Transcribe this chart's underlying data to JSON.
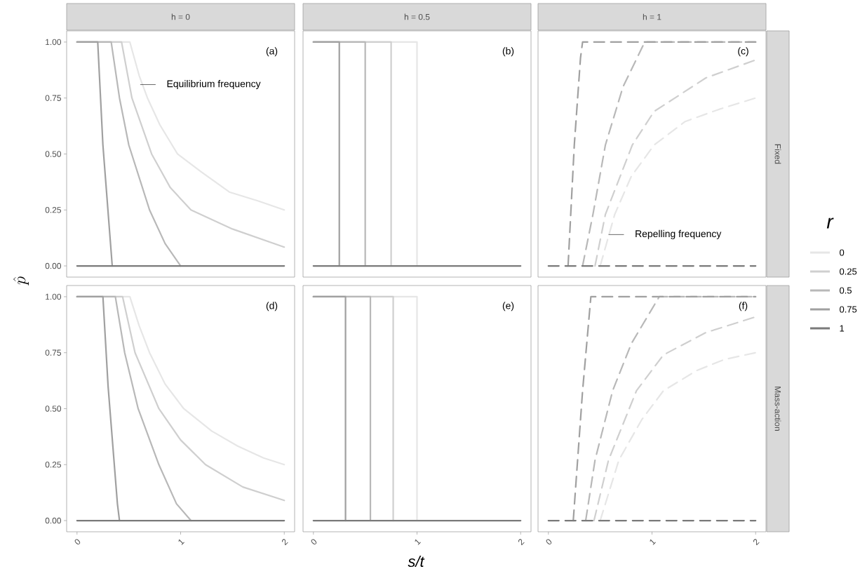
{
  "chart_data": [
    {
      "type": "line",
      "title": "h = 0",
      "ylabel": "\\hat{p}",
      "annotations": [
        "(a)",
        {
          "text": "Equilibrium frequency",
          "x": 0.61,
          "y": 0.81
        }
      ],
      "xlim": [
        -0.1,
        2.1
      ],
      "ylim": [
        -0.05,
        1.05
      ],
      "yticks": [
        {
          "value": 0,
          "label": "0.00"
        },
        {
          "value": 0.25,
          "label": "0.25"
        },
        {
          "value": 0.5,
          "label": "0.50"
        },
        {
          "value": 0.75,
          "label": "0.75"
        },
        {
          "value": 1,
          "label": "1.00"
        }
      ],
      "tick_labels": "y",
      "series": [
        {
          "color": "#e6e6e6",
          "x": [
            0,
            0.51,
            0.6,
            0.68,
            0.8,
            0.97,
            1.2,
            1.47,
            1.75,
            2
          ],
          "values": [
            1,
            1,
            0.85,
            0.75,
            0.63,
            0.5,
            0.42,
            0.33,
            0.29,
            0.25
          ]
        },
        {
          "color": "#cfcfcf",
          "x": [
            0,
            0.43,
            0.53,
            0.72,
            0.9,
            1.1,
            1.5,
            2
          ],
          "values": [
            1,
            1,
            0.75,
            0.5,
            0.35,
            0.25,
            0.165,
            0.084
          ]
        },
        {
          "color": "#b8b8b8",
          "x": [
            0,
            0.33,
            0.41,
            0.5,
            0.7,
            0.85,
            1.0
          ],
          "values": [
            1,
            1,
            0.75,
            0.54,
            0.25,
            0.1,
            0
          ]
        },
        {
          "color": "#a0a0a0",
          "x": [
            0,
            0.2,
            0.25,
            0.34
          ],
          "values": [
            1,
            1,
            0.54,
            0
          ]
        },
        {
          "color": "#7a7a7a",
          "x": [
            0,
            2
          ],
          "values": [
            0,
            0
          ]
        }
      ]
    },
    {
      "type": "line",
      "title": "h = 0.5",
      "annotations": [
        "(b)"
      ],
      "xlim": [
        -0.1,
        2.1
      ],
      "ylim": [
        -0.05,
        1.05
      ],
      "tick_labels": false,
      "series": [
        {
          "color": "#e6e6e6",
          "x": [
            0,
            1,
            1
          ],
          "values": [
            1,
            1,
            0
          ]
        },
        {
          "color": "#cfcfcf",
          "x": [
            0,
            0.75,
            0.75
          ],
          "values": [
            1,
            1,
            0
          ]
        },
        {
          "color": "#b8b8b8",
          "x": [
            0,
            0.5,
            0.5
          ],
          "values": [
            1,
            1,
            0
          ]
        },
        {
          "color": "#a0a0a0",
          "x": [
            0,
            0.25,
            0.25
          ],
          "values": [
            1,
            1,
            0
          ]
        },
        {
          "color": "#7a7a7a",
          "x": [
            0,
            2
          ],
          "values": [
            0,
            0
          ]
        }
      ]
    },
    {
      "type": "line",
      "title": "h = 1",
      "y2label": "Fixed",
      "legend": "right",
      "legend_title": "r",
      "line_style": "dashed",
      "annotations": [
        "(c)",
        {
          "text": "Repelling frequency",
          "x": 0.58,
          "y": 0.14
        }
      ],
      "xlim": [
        -0.1,
        2.1
      ],
      "ylim": [
        -0.05,
        1.05
      ],
      "tick_labels": false,
      "series": [
        {
          "name": "0",
          "color": "#e6e6e6",
          "x": [
            0.5,
            0.64,
            0.8,
            1.02,
            1.32,
            1.65,
            2
          ],
          "values": [
            0,
            0.23,
            0.4,
            0.54,
            0.645,
            0.7,
            0.75
          ]
        },
        {
          "name": "0.25",
          "color": "#cfcfcf",
          "x": [
            0.45,
            0.55,
            0.81,
            1.02,
            1.52,
            2
          ],
          "values": [
            0,
            0.23,
            0.54,
            0.69,
            0.84,
            0.92
          ]
        },
        {
          "name": "0.5",
          "color": "#b8b8b8",
          "x": [
            0.33,
            0.43,
            0.55,
            0.72,
            0.93,
            2
          ],
          "values": [
            0,
            0.23,
            0.54,
            0.8,
            1,
            1
          ]
        },
        {
          "name": "0.75",
          "color": "#a0a0a0",
          "x": [
            0.19,
            0.25,
            0.31,
            0.33,
            2
          ],
          "values": [
            0,
            0.54,
            0.93,
            1,
            1
          ]
        },
        {
          "name": "1",
          "color": "#7a7a7a",
          "x": [
            0,
            2
          ],
          "values": [
            0,
            0
          ]
        }
      ]
    },
    {
      "type": "line",
      "annotations": [
        "(d)"
      ],
      "xlim": [
        -0.1,
        2.1
      ],
      "ylim": [
        -0.05,
        1.05
      ],
      "xticks": [
        0,
        1,
        2
      ],
      "yticks": [
        {
          "value": 0,
          "label": "0.00"
        },
        {
          "value": 0.25,
          "label": "0.25"
        },
        {
          "value": 0.5,
          "label": "0.50"
        },
        {
          "value": 0.75,
          "label": "0.75"
        },
        {
          "value": 1,
          "label": "1.00"
        }
      ],
      "series": [
        {
          "color": "#e6e6e6",
          "x": [
            0,
            0.51,
            0.6,
            0.7,
            0.85,
            1.03,
            1.3,
            1.55,
            1.8,
            2
          ],
          "values": [
            1,
            1,
            0.87,
            0.75,
            0.61,
            0.5,
            0.4,
            0.333,
            0.28,
            0.25
          ]
        },
        {
          "color": "#cfcfcf",
          "x": [
            0,
            0.44,
            0.56,
            0.79,
            1.0,
            1.24,
            1.6,
            2
          ],
          "values": [
            1,
            1,
            0.75,
            0.5,
            0.36,
            0.25,
            0.15,
            0.09
          ]
        },
        {
          "color": "#b8b8b8",
          "x": [
            0,
            0.37,
            0.46,
            0.59,
            0.79,
            0.96,
            1.1
          ],
          "values": [
            1,
            1,
            0.75,
            0.5,
            0.25,
            0.075,
            0
          ]
        },
        {
          "color": "#a0a0a0",
          "x": [
            0,
            0.25,
            0.3,
            0.39,
            0.41
          ],
          "values": [
            1,
            1,
            0.6,
            0.075,
            0
          ]
        },
        {
          "color": "#7a7a7a",
          "x": [
            0,
            2
          ],
          "values": [
            0,
            0
          ]
        }
      ]
    },
    {
      "type": "line",
      "xlabel": "s/t",
      "annotations": [
        "(e)"
      ],
      "xlim": [
        -0.1,
        2.1
      ],
      "ylim": [
        -0.05,
        1.05
      ],
      "xticks": [
        0,
        1,
        2
      ],
      "tick_labels": "x",
      "series": [
        {
          "color": "#e6e6e6",
          "x": [
            0,
            1,
            1
          ],
          "values": [
            1,
            1,
            0
          ]
        },
        {
          "color": "#cfcfcf",
          "x": [
            0,
            0.77,
            0.77
          ],
          "values": [
            1,
            1,
            0
          ]
        },
        {
          "color": "#b8b8b8",
          "x": [
            0,
            0.55,
            0.55
          ],
          "values": [
            1,
            1,
            0
          ]
        },
        {
          "color": "#a0a0a0",
          "x": [
            0,
            0.31,
            0.31
          ],
          "values": [
            1,
            1,
            0
          ]
        },
        {
          "color": "#7a7a7a",
          "x": [
            0,
            2
          ],
          "values": [
            0,
            0
          ]
        }
      ]
    },
    {
      "type": "line",
      "y2label": "Mass-action",
      "line_style": "dashed",
      "annotations": [
        "(f)"
      ],
      "xlim": [
        -0.1,
        2.1
      ],
      "ylim": [
        -0.05,
        1.05
      ],
      "xticks": [
        0,
        1,
        2
      ],
      "tick_labels": "x",
      "series": [
        {
          "color": "#e6e6e6",
          "x": [
            0.5,
            0.68,
            0.9,
            1.11,
            1.43,
            1.7,
            2
          ],
          "values": [
            0,
            0.27,
            0.45,
            0.58,
            0.67,
            0.72,
            0.75
          ]
        },
        {
          "color": "#cfcfcf",
          "x": [
            0.44,
            0.58,
            0.85,
            1.11,
            1.52,
            2
          ],
          "values": [
            0,
            0.27,
            0.58,
            0.74,
            0.84,
            0.91
          ]
        },
        {
          "color": "#b8b8b8",
          "x": [
            0.36,
            0.45,
            0.62,
            0.8,
            1.07,
            2
          ],
          "values": [
            0,
            0.27,
            0.58,
            0.79,
            1,
            1
          ]
        },
        {
          "color": "#a0a0a0",
          "x": [
            0.24,
            0.33,
            0.41,
            2
          ],
          "values": [
            0,
            0.58,
            1,
            1
          ]
        },
        {
          "color": "#7a7a7a",
          "x": [
            0,
            2
          ],
          "values": [
            0,
            0
          ]
        }
      ]
    }
  ]
}
